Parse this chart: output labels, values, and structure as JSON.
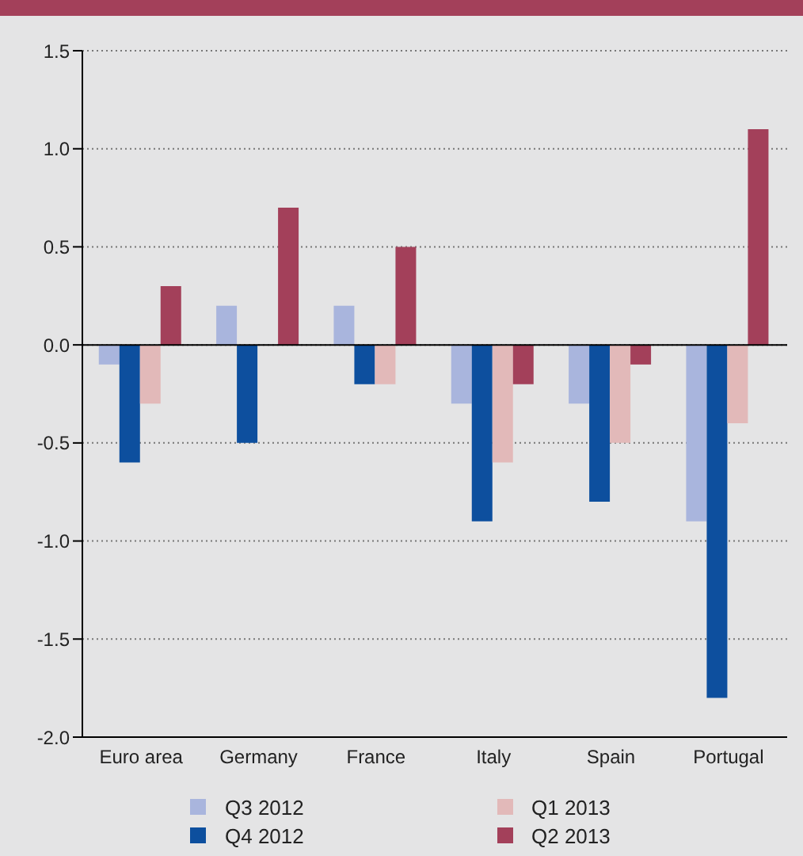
{
  "chart_data": {
    "type": "bar",
    "categories": [
      "Euro area",
      "Germany",
      "France",
      "Italy",
      "Spain",
      "Portugal"
    ],
    "series": [
      {
        "name": "Q3 2012",
        "color": "#a9b5dd",
        "values": [
          -0.1,
          0.2,
          0.2,
          -0.3,
          -0.3,
          -0.9
        ]
      },
      {
        "name": "Q4 2012",
        "color": "#0d4f9e",
        "values": [
          -0.6,
          -0.5,
          -0.2,
          -0.9,
          -0.8,
          -1.8
        ]
      },
      {
        "name": "Q1 2013",
        "color": "#e2b9b9",
        "values": [
          -0.3,
          0,
          -0.2,
          -0.6,
          -0.5,
          -0.4
        ]
      },
      {
        "name": "Q2 2013",
        "color": "#a3405a",
        "values": [
          0.3,
          0.7,
          0.5,
          -0.2,
          -0.1,
          1.1
        ]
      }
    ],
    "ylim": [
      -2.0,
      1.5
    ],
    "yticks": [
      {
        "value": -2,
        "label": "-2.0"
      },
      {
        "value": -1.5,
        "label": "-1.5"
      },
      {
        "value": -1,
        "label": "-1.0"
      },
      {
        "value": -0.5,
        "label": "-0.5"
      },
      {
        "value": 0,
        "label": "0.0"
      },
      {
        "value": 0.5,
        "label": "0.5"
      },
      {
        "value": 1,
        "label": "1.0"
      },
      {
        "value": 1.5,
        "label": "1.5"
      }
    ],
    "grid": "y",
    "legend": "bottom",
    "ref_lines": [
      {
        "axis": "y",
        "value": 0,
        "color": "#000000"
      }
    ]
  }
}
